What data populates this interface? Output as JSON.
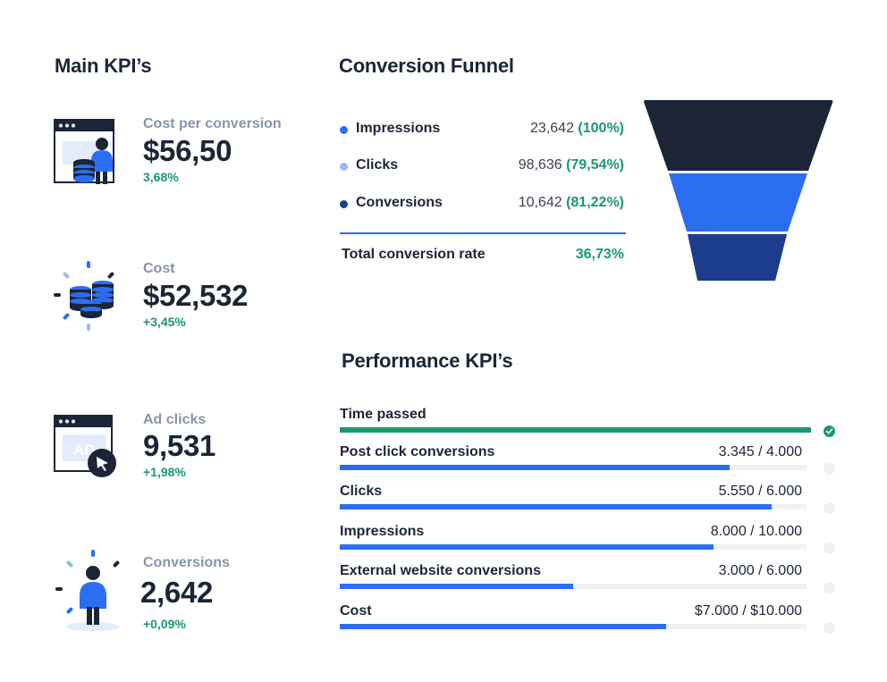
{
  "main_kpis": {
    "title": "Main KPI’s",
    "items": [
      {
        "label": "Cost per conversion",
        "value": "$56,50",
        "delta": "3,68%",
        "icon": "browser-person-coins-icon"
      },
      {
        "label": "Cost",
        "value": "$52,532",
        "delta": "+3,45%",
        "icon": "coins-stack-icon"
      },
      {
        "label": "Ad clicks",
        "value": "9,531",
        "delta": "+1,98%",
        "icon": "ad-click-cursor-icon",
        "ad_text": "AD"
      },
      {
        "label": "Conversions",
        "value": "2,642",
        "delta": "+0,09%",
        "icon": "person-sparkle-icon"
      }
    ]
  },
  "funnel": {
    "title": "Conversion Funnel",
    "rows": [
      {
        "label": "Impressions",
        "value": "23,642",
        "percent": "(100%)",
        "dot_color": "#2c6ef2"
      },
      {
        "label": "Clicks",
        "value": "98,636",
        "percent": "(79,54%)",
        "dot_color": "#9db8f6"
      },
      {
        "label": "Conversions",
        "value": "10,642",
        "percent": "(81,22%)",
        "dot_color": "#1c3c8c"
      }
    ],
    "total_label": "Total conversion rate",
    "total_value": "36,73%",
    "stage_colors": [
      "#1b2536",
      "#2c6ef2",
      "#1c3c8c"
    ]
  },
  "performance": {
    "title": "Performance KPI’s",
    "rows": [
      {
        "label": "Time passed",
        "value": "",
        "progress": 1.0,
        "complete": true
      },
      {
        "label": "Post click conversions",
        "value": "3.345  / 4.000",
        "progress": 0.836,
        "complete": false
      },
      {
        "label": "Clicks",
        "value": "5.550 / 6.000",
        "progress": 0.925,
        "complete": false
      },
      {
        "label": "Impressions",
        "value": "8.000 / 10.000",
        "progress": 0.8,
        "complete": false
      },
      {
        "label": "External website conversions",
        "value": "3.000 / 6.000",
        "progress": 0.5,
        "complete": false
      },
      {
        "label": "Cost",
        "value": "$7.000 / $10.000",
        "progress": 0.7,
        "complete": false
      }
    ]
  }
}
